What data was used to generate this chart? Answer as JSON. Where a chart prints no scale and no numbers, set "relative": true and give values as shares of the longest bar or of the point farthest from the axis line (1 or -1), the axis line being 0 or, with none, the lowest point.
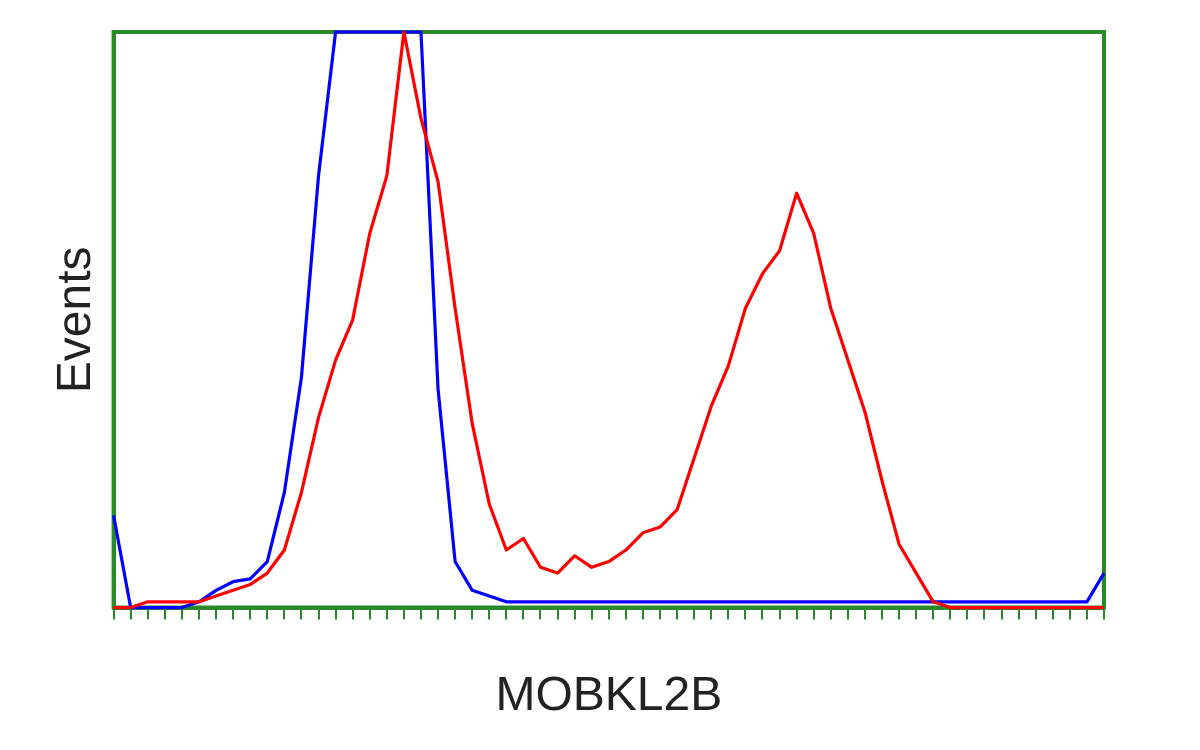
{
  "chart_data": {
    "type": "line",
    "relative": true,
    "xlabel": "MOBKL2B",
    "ylabel": "Events",
    "legend": false,
    "grid": false,
    "marker": "none",
    "categories": [
      null,
      null,
      null,
      null,
      null,
      null,
      null,
      null,
      null,
      null,
      null,
      null,
      null,
      null,
      null,
      null,
      null,
      null,
      null,
      null,
      null,
      null,
      null,
      null,
      null,
      null,
      null,
      null,
      null,
      null,
      null,
      null,
      null,
      null,
      null,
      null,
      null,
      null,
      null,
      null,
      null,
      null,
      null,
      null,
      null,
      null,
      null,
      null,
      null,
      null,
      null,
      null,
      null,
      null,
      null,
      null,
      null,
      null,
      null
    ],
    "series": [
      {
        "color": "#ff0000",
        "values": [
          0,
          0,
          0.01,
          0.01,
          0.01,
          0.01,
          0.02,
          0.03,
          0.04,
          0.06,
          0.1,
          0.2,
          0.33,
          0.43,
          0.5,
          0.65,
          0.75,
          1,
          0.85,
          0.74,
          0.52,
          0.32,
          0.18,
          0.1,
          0.12,
          0.07,
          0.06,
          0.09,
          0.07,
          0.08,
          0.1,
          0.13,
          0.14,
          0.17,
          0.26,
          0.35,
          0.42,
          0.52,
          0.58,
          0.62,
          0.72,
          0.65,
          0.52,
          0.43,
          0.34,
          0.22,
          0.11,
          0.06,
          0.01,
          0,
          0,
          0,
          0,
          0,
          0,
          0,
          0,
          0,
          0
        ]
      },
      {
        "color": "#0000ff",
        "values": [
          0.16,
          0,
          0,
          0,
          0,
          0.01,
          0.03,
          0.045,
          0.05,
          0.08,
          0.2,
          0.4,
          0.75,
          1,
          1,
          1,
          1,
          1,
          1,
          0.38,
          0.08,
          0.03,
          0.02,
          0.01,
          0.01,
          0.01,
          0.01,
          0.01,
          0.01,
          0.01,
          0.01,
          0.01,
          0.01,
          0.01,
          0.01,
          0.01,
          0.01,
          0.01,
          0.01,
          0.01,
          0.01,
          0.01,
          0.01,
          0.01,
          0.01,
          0.01,
          0.01,
          0.01,
          0.01,
          0.01,
          0.01,
          0.01,
          0.01,
          0.01,
          0.01,
          0.01,
          0.01,
          0.01,
          0.06
        ]
      }
    ]
  }
}
